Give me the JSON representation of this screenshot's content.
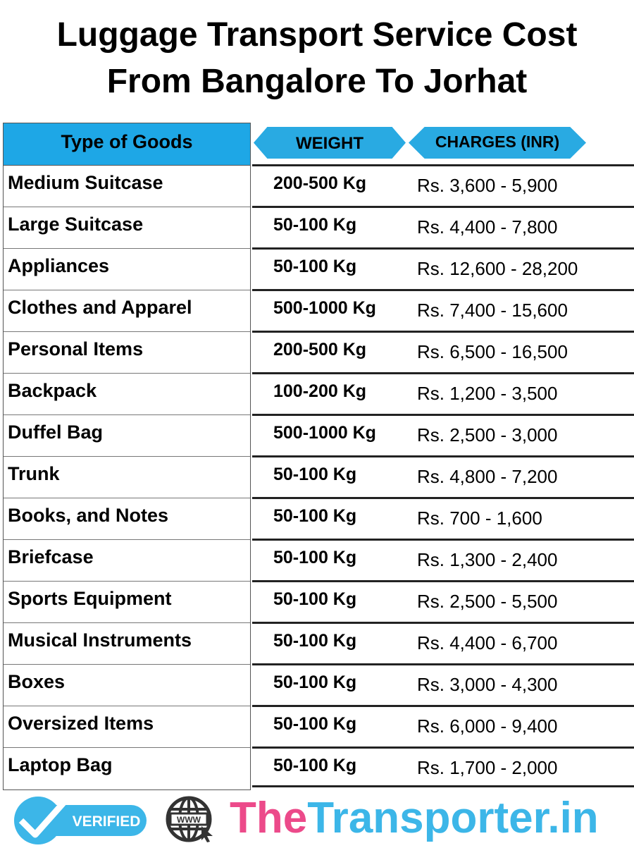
{
  "title": {
    "line1": "Luggage Transport Service Cost",
    "line2": "From Bangalore To Jorhat"
  },
  "table": {
    "headers": {
      "goods": "Type of Goods",
      "weight": "WEIGHT",
      "charges": "CHARGES (INR)"
    },
    "header_color": "#1ea7e6",
    "rows": [
      {
        "goods": "Medium Suitcase",
        "weight": "200-500 Kg",
        "charges": "Rs. 3,600 - 5,900"
      },
      {
        "goods": "Large Suitcase",
        "weight": "50-100 Kg",
        "charges": "Rs. 4,400 - 7,800"
      },
      {
        "goods": "Appliances",
        "weight": "50-100 Kg",
        "charges": "Rs. 12,600 - 28,200"
      },
      {
        "goods": "Clothes and Apparel",
        "weight": "500-1000 Kg",
        "charges": "Rs. 7,400 - 15,600"
      },
      {
        "goods": "Personal Items",
        "weight": "200-500 Kg",
        "charges": "Rs. 6,500 - 16,500"
      },
      {
        "goods": "Backpack",
        "weight": "100-200 Kg",
        "charges": "Rs. 1,200 - 3,500"
      },
      {
        "goods": "Duffel Bag",
        "weight": "500-1000 Kg",
        "charges": "Rs. 2,500 - 3,000"
      },
      {
        "goods": "Trunk",
        "weight": "50-100 Kg",
        "charges": "Rs. 4,800 - 7,200"
      },
      {
        "goods": "Books, and Notes",
        "weight": "50-100 Kg",
        "charges": "Rs. 700 - 1,600"
      },
      {
        "goods": "Briefcase",
        "weight": "50-100 Kg",
        "charges": "Rs. 1,300 - 2,400"
      },
      {
        "goods": "Sports Equipment",
        "weight": "50-100 Kg",
        "charges": "Rs. 2,500 - 5,500"
      },
      {
        "goods": "Musical Instruments",
        "weight": "50-100 Kg",
        "charges": "Rs. 4,400 - 6,700"
      },
      {
        "goods": "Boxes",
        "weight": "50-100 Kg",
        "charges": "Rs. 3,000 - 4,300"
      },
      {
        "goods": "Oversized Items",
        "weight": "50-100 Kg",
        "charges": "Rs. 6,000 - 9,400"
      },
      {
        "goods": "Laptop Bag",
        "weight": "50-100 Kg",
        "charges": "Rs. 1,700 - 2,000"
      }
    ]
  },
  "footer": {
    "badge_text": "VERIFIED",
    "globe_text": "WWW",
    "brand_part1": "The",
    "brand_part2": "Transporter.in",
    "brand_colors": {
      "pink": "#ec4a8a",
      "blue": "#3cb6e8"
    }
  }
}
